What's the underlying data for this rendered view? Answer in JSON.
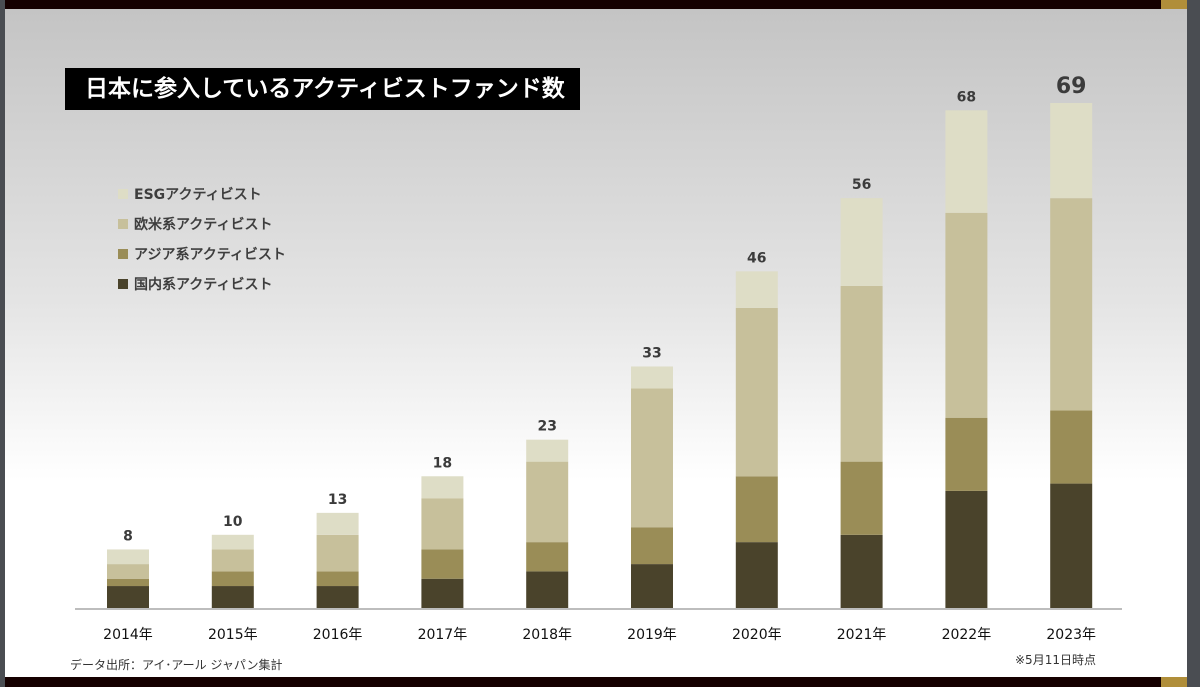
{
  "chart_data": {
    "type": "bar",
    "stacked": true,
    "title": "日本に参入しているアクティビストファンド数",
    "categories": [
      "2014年",
      "2015年",
      "2016年",
      "2017年",
      "2018年",
      "2019年",
      "2020年",
      "2021年",
      "2022年",
      "2023年"
    ],
    "totals": [
      8,
      10,
      13,
      18,
      23,
      33,
      46,
      56,
      68,
      69
    ],
    "series": [
      {
        "name": "国内系アクティビスト",
        "color": "#4a432b",
        "values": [
          3,
          3,
          3,
          4,
          5,
          6,
          9,
          10,
          16,
          17
        ]
      },
      {
        "name": "アジア系アクティビスト",
        "color": "#9a8d57",
        "values": [
          1,
          2,
          2,
          4,
          4,
          5,
          9,
          10,
          10,
          10
        ]
      },
      {
        "name": "欧米系アクティビスト",
        "color": "#c7c09b",
        "values": [
          2,
          3,
          5,
          7,
          11,
          19,
          23,
          24,
          28,
          29
        ]
      },
      {
        "name": "ESGアクティビスト",
        "color": "#deddc6",
        "values": [
          2,
          2,
          3,
          3,
          3,
          3,
          5,
          12,
          14,
          13
        ]
      }
    ],
    "legend_order": [
      "ESGアクティビスト",
      "欧米系アクティビスト",
      "アジア系アクティビスト",
      "国内系アクティビスト"
    ],
    "legend_position": "top-left",
    "grid": false,
    "ylim": [
      0,
      69
    ]
  },
  "footer": {
    "source": "データ出所：アイ･アール ジャパン集計",
    "note": "※5月11日時点"
  }
}
